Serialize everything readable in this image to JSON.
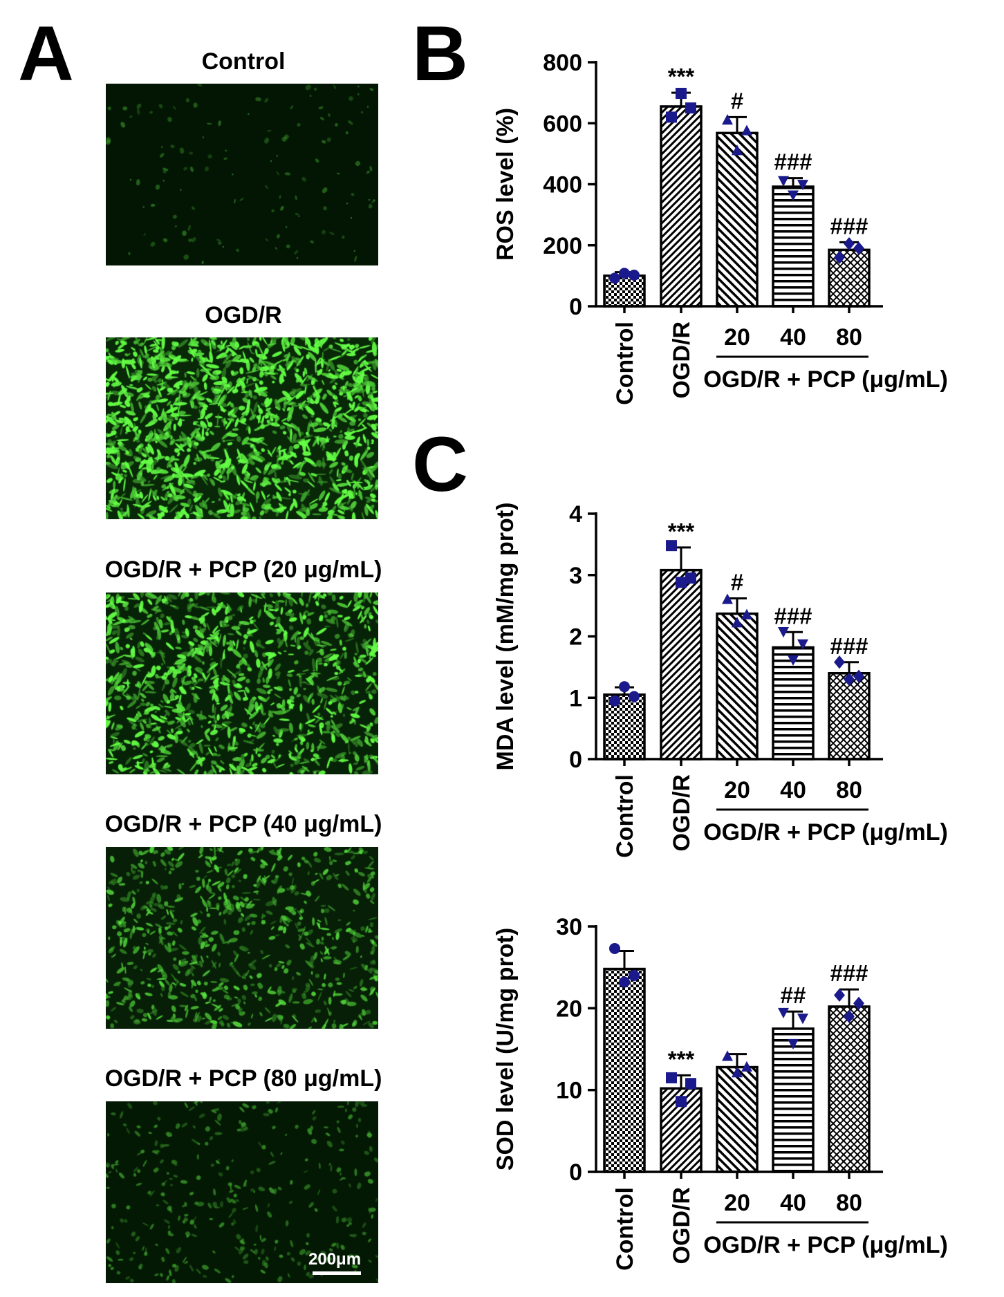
{
  "panel_labels": {
    "a": "A",
    "b": "B",
    "c": "C"
  },
  "micrographs": [
    {
      "title": "Control",
      "intensity": 0.03
    },
    {
      "title": "OGD/R",
      "intensity": 1.0
    },
    {
      "title": "OGD/R + PCP (20 μg/mL)",
      "intensity": 0.78
    },
    {
      "title": "OGD/R + PCP (40 μg/mL)",
      "intensity": 0.5
    },
    {
      "title": "OGD/R + PCP (80 μg/mL)",
      "intensity": 0.2
    }
  ],
  "scale_bar_label": "200μm",
  "colors": {
    "point": "#1a1a8c",
    "fluorescence": "#22e022",
    "ink": "#000000"
  },
  "chart_data": [
    {
      "type": "bar",
      "panel": "B",
      "categories": [
        "Control",
        "OGD/R",
        "20",
        "40",
        "80"
      ],
      "group_label": "OGD/R + PCP (μg/mL)",
      "ylabel": "ROS level (%)",
      "ylim": [
        0,
        800
      ],
      "yticks": [
        0,
        200,
        400,
        600,
        800
      ],
      "values": [
        100,
        655,
        568,
        392,
        185
      ],
      "errors": [
        12,
        45,
        52,
        28,
        25
      ],
      "points": [
        [
          92,
          108,
          102
        ],
        [
          620,
          698,
          650
        ],
        [
          610,
          510,
          575
        ],
        [
          412,
          365,
          400
        ],
        [
          160,
          205,
          190
        ]
      ],
      "markers": [
        "circle",
        "square",
        "triangle-up",
        "triangle-down",
        "diamond"
      ],
      "patterns": [
        "checker",
        "diag-fine",
        "diag-back",
        "horizontal",
        "crosshatch"
      ],
      "annotations": [
        "",
        "***",
        "#",
        "###",
        "###"
      ]
    },
    {
      "type": "bar",
      "panel": "C",
      "categories": [
        "Control",
        "OGD/R",
        "20",
        "40",
        "80"
      ],
      "group_label": "OGD/R + PCP (μg/mL)",
      "ylabel": "MDA level (mM/mg prot)",
      "ylim": [
        0,
        4
      ],
      "yticks": [
        0,
        1,
        2,
        3,
        4
      ],
      "values": [
        1.05,
        3.08,
        2.37,
        1.82,
        1.4
      ],
      "errors": [
        0.12,
        0.37,
        0.25,
        0.25,
        0.18
      ],
      "points": [
        [
          0.95,
          1.18,
          1.02
        ],
        [
          3.48,
          2.88,
          2.95
        ],
        [
          2.6,
          2.22,
          2.35
        ],
        [
          2.08,
          1.62,
          1.88
        ],
        [
          1.58,
          1.3,
          1.35
        ]
      ],
      "markers": [
        "circle",
        "square",
        "triangle-up",
        "triangle-down",
        "diamond"
      ],
      "patterns": [
        "checker",
        "diag-fine",
        "diag-back",
        "horizontal",
        "crosshatch"
      ],
      "annotations": [
        "",
        "***",
        "#",
        "###",
        "###"
      ]
    },
    {
      "type": "bar",
      "panel": "C-lower",
      "categories": [
        "Control",
        "OGD/R",
        "20",
        "40",
        "80"
      ],
      "group_label": "OGD/R + PCP (μg/mL)",
      "ylabel": "SOD level (U/mg prot)",
      "ylim": [
        0,
        30
      ],
      "yticks": [
        0,
        10,
        20,
        30
      ],
      "values": [
        24.8,
        10.2,
        12.8,
        17.5,
        20.2
      ],
      "errors": [
        2.2,
        1.6,
        1.6,
        2.1,
        2.1
      ],
      "points": [
        [
          27.3,
          23.2,
          24.0
        ],
        [
          11.5,
          8.6,
          10.8
        ],
        [
          14.1,
          12.1,
          12.8
        ],
        [
          19.5,
          15.7,
          18.8
        ],
        [
          21.6,
          19.0,
          20.6
        ]
      ],
      "markers": [
        "circle",
        "square",
        "triangle-up",
        "triangle-down",
        "diamond"
      ],
      "patterns": [
        "checker",
        "diag-fine",
        "diag-back",
        "horizontal",
        "crosshatch"
      ],
      "annotations": [
        "",
        "***",
        "",
        "##",
        "###"
      ]
    }
  ]
}
